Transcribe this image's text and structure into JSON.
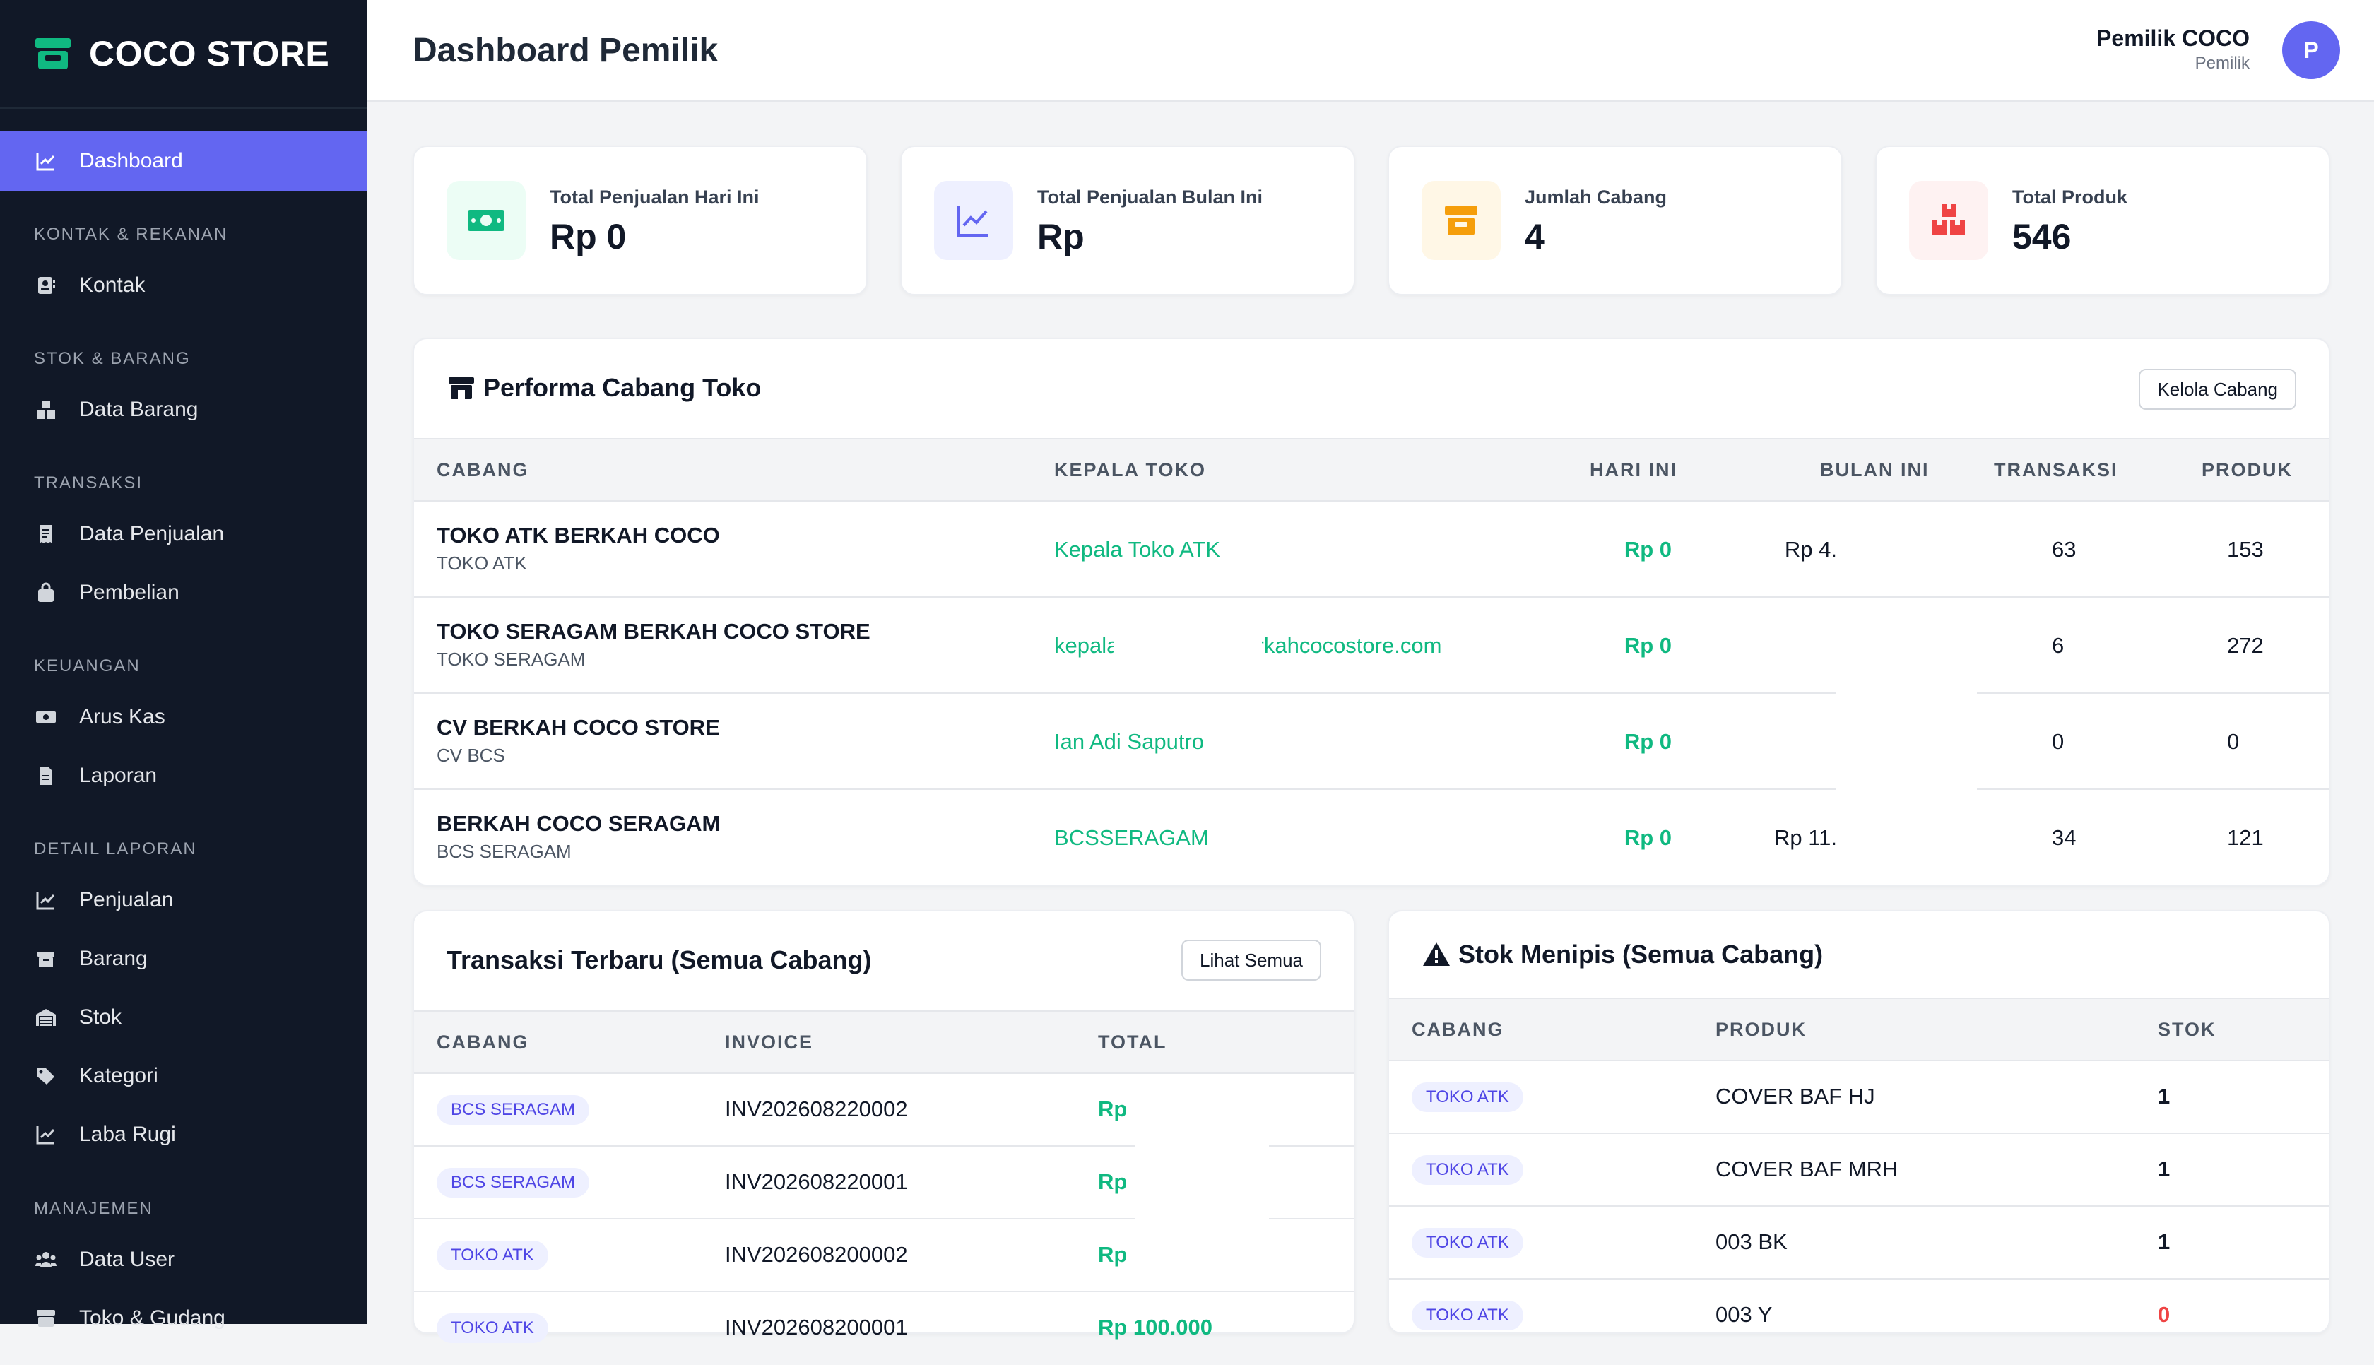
{
  "brand": {
    "name": "COCO STORE"
  },
  "sidebar": {
    "dashboard": "Dashboard",
    "sections": {
      "kontak": "KONTAK & REKANAN",
      "stok": "STOK & BARANG",
      "transaksi": "TRANSAKSI",
      "keuangan": "KEUANGAN",
      "detail": "DETAIL LAPORAN",
      "manajemen": "MANAJEMEN"
    },
    "items": {
      "kontak": "Kontak",
      "data_barang": "Data Barang",
      "data_penjualan": "Data Penjualan",
      "pembelian": "Pembelian",
      "arus_kas": "Arus Kas",
      "laporan": "Laporan",
      "penjualan": "Penjualan",
      "barang": "Barang",
      "stok": "Stok",
      "kategori": "Kategori",
      "laba_rugi": "Laba Rugi",
      "data_user": "Data User",
      "toko_gudang": "Toko & Gudang"
    }
  },
  "header": {
    "title": "Dashboard Pemilik",
    "user_name": "Pemilik COCO",
    "user_role": "Pemilik",
    "avatar_initial": "P"
  },
  "stats": [
    {
      "label": "Total Penjualan Hari Ini",
      "value": "Rp 0",
      "icon": "money-icon",
      "color": "#10b981"
    },
    {
      "label": "Total Penjualan Bulan Ini",
      "value": "Rp",
      "icon": "chart-line-icon",
      "color": "#6366f1"
    },
    {
      "label": "Jumlah Cabang",
      "value": "4",
      "icon": "store-icon",
      "color": "#f59e0b"
    },
    {
      "label": "Total Produk",
      "value": "546",
      "icon": "boxes-icon",
      "color": "#ef4444"
    }
  ],
  "performa": {
    "title": "Performa Cabang Toko",
    "button": "Kelola Cabang",
    "columns": [
      "CABANG",
      "KEPALA TOKO",
      "HARI INI",
      "BULAN INI",
      "TRANSAKSI",
      "PRODUK"
    ],
    "rows": [
      {
        "name": "TOKO ATK BERKAH COCO",
        "code": "TOKO ATK",
        "kepala": "Kepala Toko ATK",
        "hari_ini": "Rp 0",
        "bulan_ini": "Rp 4.",
        "transaksi": "63",
        "produk": "153"
      },
      {
        "name": "TOKO SERAGAM BERKAH COCO STORE",
        "code": "TOKO SERAGAM",
        "kepala": "kepala.seragam@berkahcocostore.com",
        "hari_ini": "Rp 0",
        "bulan_ini": "",
        "transaksi": "6",
        "produk": "272"
      },
      {
        "name": "CV BERKAH COCO STORE",
        "code": "CV BCS",
        "kepala": "Ian Adi Saputro",
        "hari_ini": "Rp 0",
        "bulan_ini": "",
        "transaksi": "0",
        "produk": "0"
      },
      {
        "name": "BERKAH COCO SERAGAM",
        "code": "BCS SERAGAM",
        "kepala": "BCSSERAGAM",
        "hari_ini": "Rp 0",
        "bulan_ini": "Rp 11.",
        "transaksi": "34",
        "produk": "121"
      }
    ]
  },
  "transaksi": {
    "title": "Transaksi Terbaru (Semua Cabang)",
    "button": "Lihat Semua",
    "columns": [
      "CABANG",
      "INVOICE",
      "TOTAL"
    ],
    "rows": [
      {
        "cabang": "BCS SERAGAM",
        "invoice": "INV202608220002",
        "total": "Rp"
      },
      {
        "cabang": "BCS SERAGAM",
        "invoice": "INV202608220001",
        "total": "Rp"
      },
      {
        "cabang": "TOKO ATK",
        "invoice": "INV202608200002",
        "total": "Rp"
      },
      {
        "cabang": "TOKO ATK",
        "invoice": "INV202608200001",
        "total": "Rp 100.000"
      }
    ]
  },
  "stok": {
    "title": "Stok Menipis (Semua Cabang)",
    "columns": [
      "CABANG",
      "PRODUK",
      "STOK"
    ],
    "rows": [
      {
        "cabang": "TOKO ATK",
        "produk": "COVER BAF HJ",
        "stok": "1"
      },
      {
        "cabang": "TOKO ATK",
        "produk": "COVER BAF MRH",
        "stok": "1"
      },
      {
        "cabang": "TOKO ATK",
        "produk": "003 BK",
        "stok": "1"
      },
      {
        "cabang": "TOKO ATK",
        "produk": "003 Y",
        "stok": "0"
      }
    ]
  }
}
